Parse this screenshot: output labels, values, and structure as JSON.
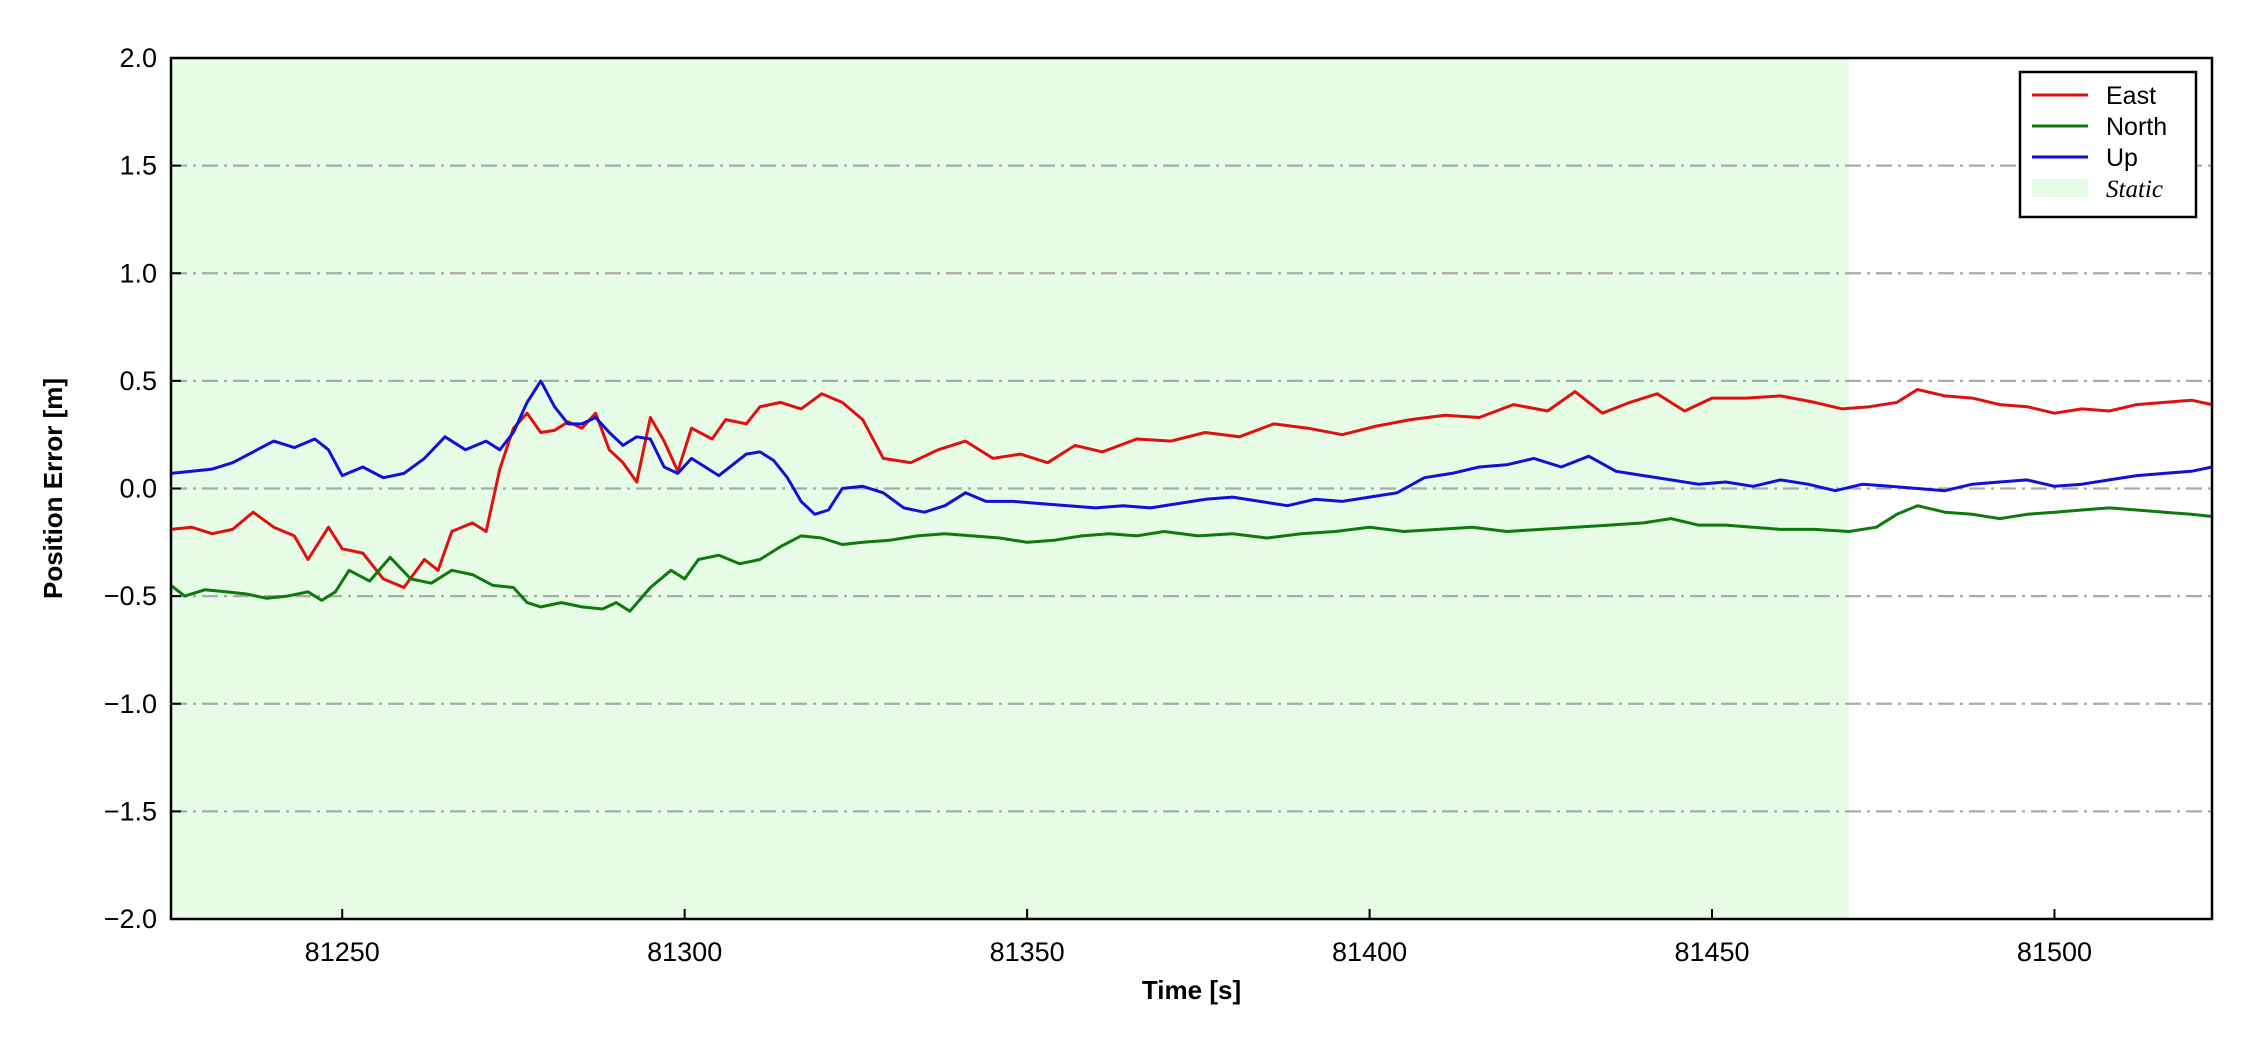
{
  "chart_data": {
    "type": "line",
    "title": "",
    "xlabel": "Time [s]",
    "ylabel": "Position Error [m]",
    "xlim": [
      81225,
      81523
    ],
    "ylim": [
      -2.0,
      2.0
    ],
    "xticks": [
      81250,
      81300,
      81350,
      81400,
      81450,
      81500
    ],
    "yticks": [
      -2.0,
      -1.5,
      -1.0,
      -0.5,
      0.0,
      0.5,
      1.0,
      1.5,
      2.0
    ],
    "ytick_labels": [
      "−2.0",
      "−1.5",
      "−1.0",
      "−0.5",
      "0.0",
      "0.5",
      "1.0",
      "1.5",
      "2.0"
    ],
    "grid": "horizontal dash-dot",
    "legend_position": "top-right",
    "static_region": {
      "label": "Static",
      "x_start": 81225,
      "x_end": 81470,
      "color": "#e6fce6"
    },
    "series": [
      {
        "name": "East",
        "color": "#e01010",
        "points": [
          [
            81225,
            -0.19
          ],
          [
            81228,
            -0.18
          ],
          [
            81231,
            -0.21
          ],
          [
            81234,
            -0.19
          ],
          [
            81237,
            -0.11
          ],
          [
            81240,
            -0.18
          ],
          [
            81243,
            -0.22
          ],
          [
            81245,
            -0.33
          ],
          [
            81248,
            -0.18
          ],
          [
            81250,
            -0.28
          ],
          [
            81253,
            -0.3
          ],
          [
            81256,
            -0.42
          ],
          [
            81259,
            -0.46
          ],
          [
            81262,
            -0.33
          ],
          [
            81264,
            -0.38
          ],
          [
            81266,
            -0.2
          ],
          [
            81269,
            -0.16
          ],
          [
            81271,
            -0.2
          ],
          [
            81273,
            0.09
          ],
          [
            81275,
            0.28
          ],
          [
            81277,
            0.35
          ],
          [
            81279,
            0.26
          ],
          [
            81281,
            0.27
          ],
          [
            81283,
            0.31
          ],
          [
            81285,
            0.28
          ],
          [
            81287,
            0.35
          ],
          [
            81289,
            0.18
          ],
          [
            81291,
            0.12
          ],
          [
            81293,
            0.03
          ],
          [
            81295,
            0.33
          ],
          [
            81297,
            0.22
          ],
          [
            81299,
            0.08
          ],
          [
            81301,
            0.28
          ],
          [
            81304,
            0.23
          ],
          [
            81306,
            0.32
          ],
          [
            81309,
            0.3
          ],
          [
            81311,
            0.38
          ],
          [
            81314,
            0.4
          ],
          [
            81317,
            0.37
          ],
          [
            81320,
            0.44
          ],
          [
            81323,
            0.4
          ],
          [
            81326,
            0.32
          ],
          [
            81329,
            0.14
          ],
          [
            81333,
            0.12
          ],
          [
            81337,
            0.18
          ],
          [
            81341,
            0.22
          ],
          [
            81345,
            0.14
          ],
          [
            81349,
            0.16
          ],
          [
            81353,
            0.12
          ],
          [
            81357,
            0.2
          ],
          [
            81361,
            0.17
          ],
          [
            81366,
            0.23
          ],
          [
            81371,
            0.22
          ],
          [
            81376,
            0.26
          ],
          [
            81381,
            0.24
          ],
          [
            81386,
            0.3
          ],
          [
            81391,
            0.28
          ],
          [
            81396,
            0.25
          ],
          [
            81401,
            0.29
          ],
          [
            81406,
            0.32
          ],
          [
            81411,
            0.34
          ],
          [
            81416,
            0.33
          ],
          [
            81421,
            0.39
          ],
          [
            81426,
            0.36
          ],
          [
            81430,
            0.45
          ],
          [
            81434,
            0.35
          ],
          [
            81438,
            0.4
          ],
          [
            81442,
            0.44
          ],
          [
            81446,
            0.36
          ],
          [
            81450,
            0.42
          ],
          [
            81455,
            0.42
          ],
          [
            81460,
            0.43
          ],
          [
            81465,
            0.4
          ],
          [
            81469,
            0.37
          ],
          [
            81473,
            0.38
          ],
          [
            81477,
            0.4
          ],
          [
            81480,
            0.46
          ],
          [
            81484,
            0.43
          ],
          [
            81488,
            0.42
          ],
          [
            81492,
            0.39
          ],
          [
            81496,
            0.38
          ],
          [
            81500,
            0.35
          ],
          [
            81504,
            0.37
          ],
          [
            81508,
            0.36
          ],
          [
            81512,
            0.39
          ],
          [
            81516,
            0.4
          ],
          [
            81520,
            0.41
          ],
          [
            81523,
            0.39
          ]
        ]
      },
      {
        "name": "North",
        "color": "#0e7a0e",
        "points": [
          [
            81225,
            -0.45
          ],
          [
            81227,
            -0.5
          ],
          [
            81230,
            -0.47
          ],
          [
            81233,
            -0.48
          ],
          [
            81236,
            -0.49
          ],
          [
            81239,
            -0.51
          ],
          [
            81242,
            -0.5
          ],
          [
            81245,
            -0.48
          ],
          [
            81247,
            -0.52
          ],
          [
            81249,
            -0.48
          ],
          [
            81251,
            -0.38
          ],
          [
            81254,
            -0.43
          ],
          [
            81257,
            -0.32
          ],
          [
            81260,
            -0.42
          ],
          [
            81263,
            -0.44
          ],
          [
            81266,
            -0.38
          ],
          [
            81269,
            -0.4
          ],
          [
            81272,
            -0.45
          ],
          [
            81275,
            -0.46
          ],
          [
            81277,
            -0.53
          ],
          [
            81279,
            -0.55
          ],
          [
            81282,
            -0.53
          ],
          [
            81285,
            -0.55
          ],
          [
            81288,
            -0.56
          ],
          [
            81290,
            -0.53
          ],
          [
            81292,
            -0.57
          ],
          [
            81295,
            -0.46
          ],
          [
            81298,
            -0.38
          ],
          [
            81300,
            -0.42
          ],
          [
            81302,
            -0.33
          ],
          [
            81305,
            -0.31
          ],
          [
            81308,
            -0.35
          ],
          [
            81311,
            -0.33
          ],
          [
            81314,
            -0.27
          ],
          [
            81317,
            -0.22
          ],
          [
            81320,
            -0.23
          ],
          [
            81323,
            -0.26
          ],
          [
            81326,
            -0.25
          ],
          [
            81330,
            -0.24
          ],
          [
            81334,
            -0.22
          ],
          [
            81338,
            -0.21
          ],
          [
            81342,
            -0.22
          ],
          [
            81346,
            -0.23
          ],
          [
            81350,
            -0.25
          ],
          [
            81354,
            -0.24
          ],
          [
            81358,
            -0.22
          ],
          [
            81362,
            -0.21
          ],
          [
            81366,
            -0.22
          ],
          [
            81370,
            -0.2
          ],
          [
            81375,
            -0.22
          ],
          [
            81380,
            -0.21
          ],
          [
            81385,
            -0.23
          ],
          [
            81390,
            -0.21
          ],
          [
            81395,
            -0.2
          ],
          [
            81400,
            -0.18
          ],
          [
            81405,
            -0.2
          ],
          [
            81410,
            -0.19
          ],
          [
            81415,
            -0.18
          ],
          [
            81420,
            -0.2
          ],
          [
            81425,
            -0.19
          ],
          [
            81430,
            -0.18
          ],
          [
            81435,
            -0.17
          ],
          [
            81440,
            -0.16
          ],
          [
            81444,
            -0.14
          ],
          [
            81448,
            -0.17
          ],
          [
            81452,
            -0.17
          ],
          [
            81456,
            -0.18
          ],
          [
            81460,
            -0.19
          ],
          [
            81465,
            -0.19
          ],
          [
            81470,
            -0.2
          ],
          [
            81474,
            -0.18
          ],
          [
            81477,
            -0.12
          ],
          [
            81480,
            -0.08
          ],
          [
            81484,
            -0.11
          ],
          [
            81488,
            -0.12
          ],
          [
            81492,
            -0.14
          ],
          [
            81496,
            -0.12
          ],
          [
            81500,
            -0.11
          ],
          [
            81504,
            -0.1
          ],
          [
            81508,
            -0.09
          ],
          [
            81512,
            -0.1
          ],
          [
            81516,
            -0.11
          ],
          [
            81520,
            -0.12
          ],
          [
            81523,
            -0.13
          ]
        ]
      },
      {
        "name": "Up",
        "color": "#1010d8",
        "points": [
          [
            81225,
            0.07
          ],
          [
            81228,
            0.08
          ],
          [
            81231,
            0.09
          ],
          [
            81234,
            0.12
          ],
          [
            81237,
            0.17
          ],
          [
            81240,
            0.22
          ],
          [
            81243,
            0.19
          ],
          [
            81246,
            0.23
          ],
          [
            81248,
            0.18
          ],
          [
            81250,
            0.06
          ],
          [
            81253,
            0.1
          ],
          [
            81256,
            0.05
          ],
          [
            81259,
            0.07
          ],
          [
            81262,
            0.14
          ],
          [
            81265,
            0.24
          ],
          [
            81268,
            0.18
          ],
          [
            81271,
            0.22
          ],
          [
            81273,
            0.18
          ],
          [
            81275,
            0.26
          ],
          [
            81277,
            0.4
          ],
          [
            81279,
            0.5
          ],
          [
            81281,
            0.38
          ],
          [
            81283,
            0.3
          ],
          [
            81285,
            0.3
          ],
          [
            81287,
            0.33
          ],
          [
            81289,
            0.26
          ],
          [
            81291,
            0.2
          ],
          [
            81293,
            0.24
          ],
          [
            81295,
            0.23
          ],
          [
            81297,
            0.1
          ],
          [
            81299,
            0.07
          ],
          [
            81301,
            0.14
          ],
          [
            81303,
            0.1
          ],
          [
            81305,
            0.06
          ],
          [
            81307,
            0.11
          ],
          [
            81309,
            0.16
          ],
          [
            81311,
            0.17
          ],
          [
            81313,
            0.13
          ],
          [
            81315,
            0.05
          ],
          [
            81317,
            -0.06
          ],
          [
            81319,
            -0.12
          ],
          [
            81321,
            -0.1
          ],
          [
            81323,
            0.0
          ],
          [
            81326,
            0.01
          ],
          [
            81329,
            -0.02
          ],
          [
            81332,
            -0.09
          ],
          [
            81335,
            -0.11
          ],
          [
            81338,
            -0.08
          ],
          [
            81341,
            -0.02
          ],
          [
            81344,
            -0.06
          ],
          [
            81348,
            -0.06
          ],
          [
            81352,
            -0.07
          ],
          [
            81356,
            -0.08
          ],
          [
            81360,
            -0.09
          ],
          [
            81364,
            -0.08
          ],
          [
            81368,
            -0.09
          ],
          [
            81372,
            -0.07
          ],
          [
            81376,
            -0.05
          ],
          [
            81380,
            -0.04
          ],
          [
            81384,
            -0.06
          ],
          [
            81388,
            -0.08
          ],
          [
            81392,
            -0.05
          ],
          [
            81396,
            -0.06
          ],
          [
            81400,
            -0.04
          ],
          [
            81404,
            -0.02
          ],
          [
            81408,
            0.05
          ],
          [
            81412,
            0.07
          ],
          [
            81416,
            0.1
          ],
          [
            81420,
            0.11
          ],
          [
            81424,
            0.14
          ],
          [
            81428,
            0.1
          ],
          [
            81432,
            0.15
          ],
          [
            81436,
            0.08
          ],
          [
            81440,
            0.06
          ],
          [
            81444,
            0.04
          ],
          [
            81448,
            0.02
          ],
          [
            81452,
            0.03
          ],
          [
            81456,
            0.01
          ],
          [
            81460,
            0.04
          ],
          [
            81464,
            0.02
          ],
          [
            81468,
            -0.01
          ],
          [
            81472,
            0.02
          ],
          [
            81476,
            0.01
          ],
          [
            81480,
            0.0
          ],
          [
            81484,
            -0.01
          ],
          [
            81488,
            0.02
          ],
          [
            81492,
            0.03
          ],
          [
            81496,
            0.04
          ],
          [
            81500,
            0.01
          ],
          [
            81504,
            0.02
          ],
          [
            81508,
            0.04
          ],
          [
            81512,
            0.06
          ],
          [
            81516,
            0.07
          ],
          [
            81520,
            0.08
          ],
          [
            81523,
            0.1
          ]
        ]
      }
    ]
  }
}
